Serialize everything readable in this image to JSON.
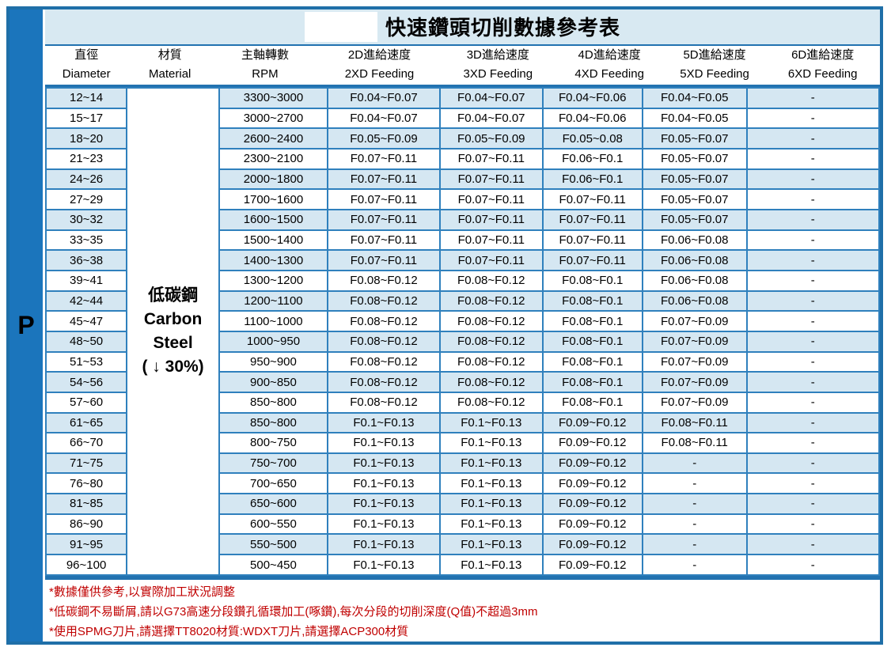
{
  "title": {
    "text": "快速鑽頭切削數據參考表"
  },
  "side_label": "P",
  "columns": [
    {
      "zh": "直徑",
      "en": "Diameter"
    },
    {
      "zh": "材質",
      "en": "Material"
    },
    {
      "zh": "主軸轉數",
      "en": "RPM"
    },
    {
      "zh": "2D進給速度",
      "en": "2XD Feeding"
    },
    {
      "zh": "3D進給速度",
      "en": "3XD Feeding"
    },
    {
      "zh": "4D進給速度",
      "en": "4XD Feeding"
    },
    {
      "zh": "5D進給速度",
      "en": "5XD Feeding"
    },
    {
      "zh": "6D進給速度",
      "en": "6XD Feeding"
    }
  ],
  "material": {
    "lines": [
      "低碳鋼",
      "Carbon",
      "Steel",
      "( ↓ 30%)"
    ]
  },
  "rows": [
    {
      "diameter": "12~14",
      "rpm": "3300~3000",
      "f2": "F0.04~F0.07",
      "f3": "F0.04~F0.07",
      "f4": "F0.04~F0.06",
      "f5": "F0.04~F0.05",
      "f6": "-"
    },
    {
      "diameter": "15~17",
      "rpm": "3000~2700",
      "f2": "F0.04~F0.07",
      "f3": "F0.04~F0.07",
      "f4": "F0.04~F0.06",
      "f5": "F0.04~F0.05",
      "f6": "-"
    },
    {
      "diameter": "18~20",
      "rpm": "2600~2400",
      "f2": "F0.05~F0.09",
      "f3": "F0.05~F0.09",
      "f4": "F0.05~0.08",
      "f5": "F0.05~F0.07",
      "f6": "-"
    },
    {
      "diameter": "21~23",
      "rpm": "2300~2100",
      "f2": "F0.07~F0.11",
      "f3": "F0.07~F0.11",
      "f4": "F0.06~F0.1",
      "f5": "F0.05~F0.07",
      "f6": "-"
    },
    {
      "diameter": "24~26",
      "rpm": "2000~1800",
      "f2": "F0.07~F0.11",
      "f3": "F0.07~F0.11",
      "f4": "F0.06~F0.1",
      "f5": "F0.05~F0.07",
      "f6": "-"
    },
    {
      "diameter": "27~29",
      "rpm": "1700~1600",
      "f2": "F0.07~F0.11",
      "f3": "F0.07~F0.11",
      "f4": "F0.07~F0.11",
      "f5": "F0.05~F0.07",
      "f6": "-"
    },
    {
      "diameter": "30~32",
      "rpm": "1600~1500",
      "f2": "F0.07~F0.11",
      "f3": "F0.07~F0.11",
      "f4": "F0.07~F0.11",
      "f5": "F0.05~F0.07",
      "f6": "-"
    },
    {
      "diameter": "33~35",
      "rpm": "1500~1400",
      "f2": "F0.07~F0.11",
      "f3": "F0.07~F0.11",
      "f4": "F0.07~F0.11",
      "f5": "F0.06~F0.08",
      "f6": "-"
    },
    {
      "diameter": "36~38",
      "rpm": "1400~1300",
      "f2": "F0.07~F0.11",
      "f3": "F0.07~F0.11",
      "f4": "F0.07~F0.11",
      "f5": "F0.06~F0.08",
      "f6": "-"
    },
    {
      "diameter": "39~41",
      "rpm": "1300~1200",
      "f2": "F0.08~F0.12",
      "f3": "F0.08~F0.12",
      "f4": "F0.08~F0.1",
      "f5": "F0.06~F0.08",
      "f6": "-"
    },
    {
      "diameter": "42~44",
      "rpm": "1200~1100",
      "f2": "F0.08~F0.12",
      "f3": "F0.08~F0.12",
      "f4": "F0.08~F0.1",
      "f5": "F0.06~F0.08",
      "f6": "-"
    },
    {
      "diameter": "45~47",
      "rpm": "1100~1000",
      "f2": "F0.08~F0.12",
      "f3": "F0.08~F0.12",
      "f4": "F0.08~F0.1",
      "f5": "F0.07~F0.09",
      "f6": "-"
    },
    {
      "diameter": "48~50",
      "rpm": "1000~950",
      "f2": "F0.08~F0.12",
      "f3": "F0.08~F0.12",
      "f4": "F0.08~F0.1",
      "f5": "F0.07~F0.09",
      "f6": "-"
    },
    {
      "diameter": "51~53",
      "rpm": "950~900",
      "f2": "F0.08~F0.12",
      "f3": "F0.08~F0.12",
      "f4": "F0.08~F0.1",
      "f5": "F0.07~F0.09",
      "f6": "-"
    },
    {
      "diameter": "54~56",
      "rpm": "900~850",
      "f2": "F0.08~F0.12",
      "f3": "F0.08~F0.12",
      "f4": "F0.08~F0.1",
      "f5": "F0.07~F0.09",
      "f6": "-"
    },
    {
      "diameter": "57~60",
      "rpm": "850~800",
      "f2": "F0.08~F0.12",
      "f3": "F0.08~F0.12",
      "f4": "F0.08~F0.1",
      "f5": "F0.07~F0.09",
      "f6": "-"
    },
    {
      "diameter": "61~65",
      "rpm": "850~800",
      "f2": "F0.1~F0.13",
      "f3": "F0.1~F0.13",
      "f4": "F0.09~F0.12",
      "f5": "F0.08~F0.11",
      "f6": "-"
    },
    {
      "diameter": "66~70",
      "rpm": "800~750",
      "f2": "F0.1~F0.13",
      "f3": "F0.1~F0.13",
      "f4": "F0.09~F0.12",
      "f5": "F0.08~F0.11",
      "f6": "-"
    },
    {
      "diameter": "71~75",
      "rpm": "750~700",
      "f2": "F0.1~F0.13",
      "f3": "F0.1~F0.13",
      "f4": "F0.09~F0.12",
      "f5": "-",
      "f6": "-"
    },
    {
      "diameter": "76~80",
      "rpm": "700~650",
      "f2": "F0.1~F0.13",
      "f3": "F0.1~F0.13",
      "f4": "F0.09~F0.12",
      "f5": "-",
      "f6": "-"
    },
    {
      "diameter": "81~85",
      "rpm": "650~600",
      "f2": "F0.1~F0.13",
      "f3": "F0.1~F0.13",
      "f4": "F0.09~F0.12",
      "f5": "-",
      "f6": "-"
    },
    {
      "diameter": "86~90",
      "rpm": "600~550",
      "f2": "F0.1~F0.13",
      "f3": "F0.1~F0.13",
      "f4": "F0.09~F0.12",
      "f5": "-",
      "f6": "-"
    },
    {
      "diameter": "91~95",
      "rpm": "550~500",
      "f2": "F0.1~F0.13",
      "f3": "F0.1~F0.13",
      "f4": "F0.09~F0.12",
      "f5": "-",
      "f6": "-"
    },
    {
      "diameter": "96~100",
      "rpm": "500~450",
      "f2": "F0.1~F0.13",
      "f3": "F0.1~F0.13",
      "f4": "F0.09~F0.12",
      "f5": "-",
      "f6": "-"
    }
  ],
  "notes": [
    "*數據僅供參考,以實際加工狀況調整",
    "*低碳鋼不易斷屑,請以G73高速分段鑽孔循環加工(啄鑽),每次分段的切削深度(Q值)不超過3mm",
    "*使用SPMG刀片,請選擇TT8020材質:WDXT刀片,請選擇ACP300材質"
  ],
  "colors": {
    "sidebar_blue": "#1b75bc",
    "frame_blue": "#1f6fa8",
    "grid_blue": "#2f80bd",
    "title_background": "#d8e9f2",
    "alt_row_blue": "#d5e7f2",
    "note_red": "#c00000"
  }
}
